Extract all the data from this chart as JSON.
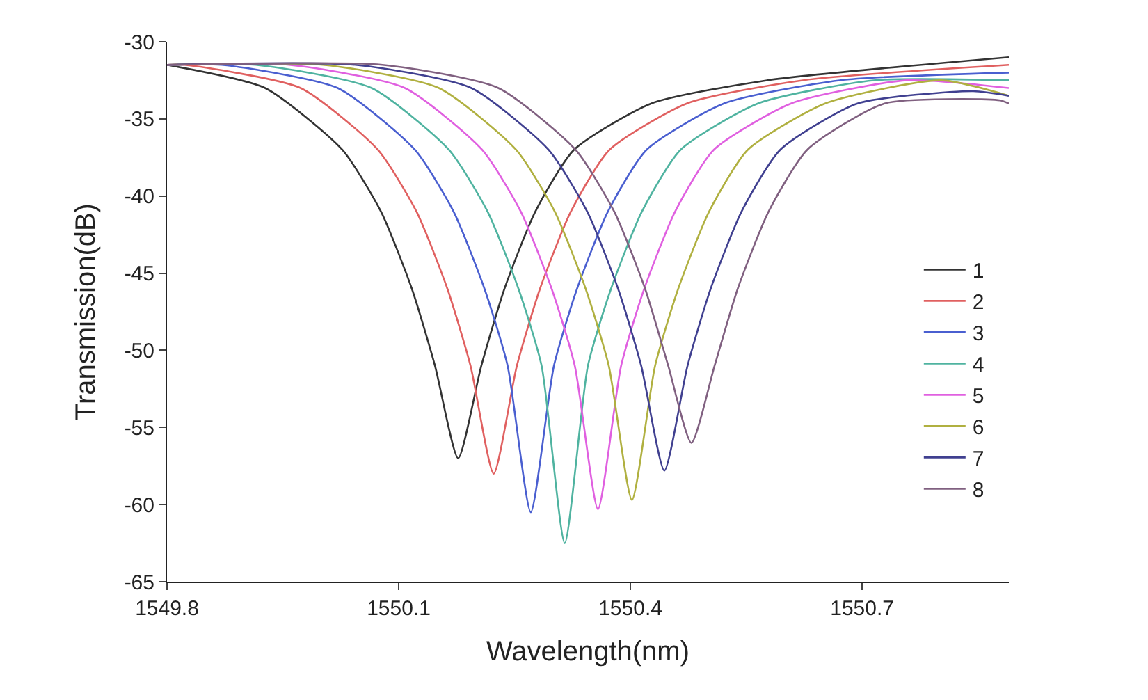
{
  "chart_data": {
    "type": "line",
    "xlabel": "Wavelength(nm)",
    "ylabel": "Transmission(dB)",
    "xlim": [
      1549.8,
      1550.89
    ],
    "xticks": [
      1549.8,
      1550.1,
      1550.4,
      1550.7
    ],
    "ylim": [
      -65,
      -30
    ],
    "yticks": [
      -30,
      -35,
      -40,
      -45,
      -50,
      -55,
      -60,
      -65
    ],
    "legend": "right",
    "marker": "none",
    "line_style": "solid",
    "series": [
      {
        "name": "1",
        "color": "#333333",
        "x": [
          1549.8,
          1549.927,
          1550.027,
          1550.077,
          1550.117,
          1550.147,
          1550.177,
          1550.207,
          1550.237,
          1550.277,
          1550.327,
          1550.427,
          1550.577,
          1550.89
        ],
        "values": [
          -31.5,
          -33,
          -37,
          -41,
          -46,
          -51,
          -57,
          -51,
          -46,
          -41,
          -37,
          -34,
          -32.5,
          -31
        ]
      },
      {
        "name": "2",
        "color": "#e06060",
        "x": [
          1549.8,
          1549.823,
          1549.973,
          1550.073,
          1550.123,
          1550.163,
          1550.193,
          1550.223,
          1550.253,
          1550.283,
          1550.323,
          1550.373,
          1550.473,
          1550.623,
          1550.89
        ],
        "values": [
          -31.5,
          -31.5,
          -33,
          -37,
          -41,
          -46,
          -51,
          -58,
          -51,
          -46,
          -41,
          -37,
          -34,
          -32.5,
          -31.5
        ]
      },
      {
        "name": "3",
        "color": "#4a5fd0",
        "x": [
          1549.8,
          1549.871,
          1550.021,
          1550.121,
          1550.171,
          1550.211,
          1550.241,
          1550.271,
          1550.301,
          1550.331,
          1550.371,
          1550.421,
          1550.521,
          1550.671,
          1550.89
        ],
        "values": [
          -31.5,
          -31.5,
          -33,
          -37,
          -41,
          -46,
          -51,
          -60.5,
          -51,
          -46,
          -41,
          -37,
          -34,
          -32.5,
          -32
        ]
      },
      {
        "name": "4",
        "color": "#4fb3a0",
        "x": [
          1549.8,
          1549.915,
          1550.065,
          1550.165,
          1550.215,
          1550.255,
          1550.285,
          1550.315,
          1550.345,
          1550.375,
          1550.415,
          1550.465,
          1550.565,
          1550.715,
          1550.89
        ],
        "values": [
          -31.5,
          -31.5,
          -33,
          -37,
          -41,
          -46,
          -51,
          -62.5,
          -51,
          -46,
          -41,
          -37,
          -34,
          -32.5,
          -32.5
        ]
      },
      {
        "name": "5",
        "color": "#e060e0",
        "x": [
          1549.8,
          1549.958,
          1550.108,
          1550.208,
          1550.258,
          1550.298,
          1550.328,
          1550.358,
          1550.388,
          1550.418,
          1550.458,
          1550.508,
          1550.608,
          1550.758,
          1550.89
        ],
        "values": [
          -31.5,
          -31.5,
          -33,
          -37,
          -41,
          -46,
          -51,
          -60.3,
          -51,
          -46,
          -41,
          -37,
          -34,
          -32.5,
          -33
        ]
      },
      {
        "name": "6",
        "color": "#b0b040",
        "x": [
          1549.8,
          1550.002,
          1550.152,
          1550.252,
          1550.302,
          1550.342,
          1550.372,
          1550.402,
          1550.432,
          1550.462,
          1550.502,
          1550.552,
          1550.652,
          1550.802,
          1550.89
        ],
        "values": [
          -31.5,
          -31.5,
          -33,
          -37,
          -41,
          -46,
          -51,
          -59.7,
          -51,
          -46,
          -41,
          -37,
          -34,
          -32.5,
          -33.5
        ]
      },
      {
        "name": "7",
        "color": "#404090",
        "x": [
          1549.8,
          1550.044,
          1550.194,
          1550.294,
          1550.344,
          1550.384,
          1550.414,
          1550.444,
          1550.474,
          1550.504,
          1550.544,
          1550.594,
          1550.694,
          1550.844,
          1550.89
        ],
        "values": [
          -31.5,
          -31.5,
          -33,
          -37,
          -41,
          -46,
          -51,
          -57.8,
          -51,
          -46,
          -41,
          -37,
          -34,
          -33.2,
          -33.5
        ]
      },
      {
        "name": "8",
        "color": "#806080",
        "x": [
          1549.8,
          1550.079,
          1550.229,
          1550.329,
          1550.379,
          1550.419,
          1550.449,
          1550.479,
          1550.509,
          1550.539,
          1550.579,
          1550.629,
          1550.729,
          1550.879,
          1550.89
        ],
        "values": [
          -31.5,
          -31.5,
          -33,
          -37,
          -41,
          -46,
          -51,
          -56,
          -51,
          -46,
          -41,
          -37,
          -34,
          -33.8,
          -34
        ]
      }
    ]
  }
}
